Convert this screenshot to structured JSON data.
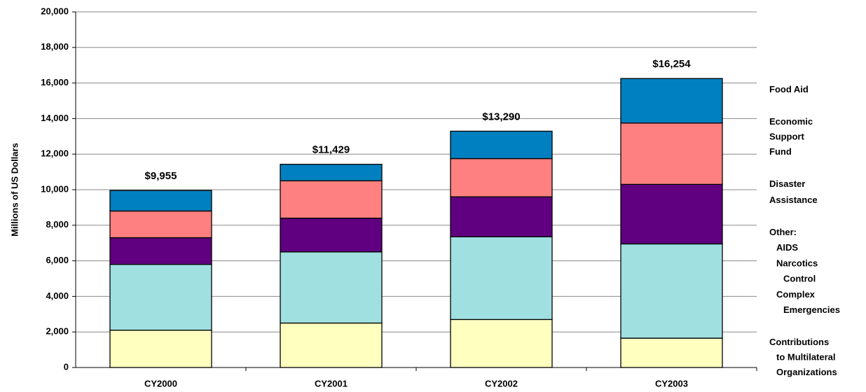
{
  "chart_data": {
    "type": "stacked_bar",
    "y_label": "Millions of US Dollars",
    "categories": [
      "CY2000",
      "CY2001",
      "CY2002",
      "CY2003"
    ],
    "series": [
      {
        "name": "Contributions\nto Multilateral\nOrganizations",
        "color": "#ffffc0",
        "values": [
          2100,
          2500,
          2700,
          1650
        ]
      },
      {
        "name": "Other:\nAIDS\nNarcotics\nControl\nComplex\nEmergencies",
        "color": "#a0e0e0",
        "values": [
          3700,
          4000,
          4650,
          5300
        ]
      },
      {
        "name": "Disaster\nAssistance",
        "color": "#600080",
        "values": [
          1500,
          1900,
          2250,
          3350
        ]
      },
      {
        "name": "Economic\nSupport\nFund",
        "color": "#ff8080",
        "values": [
          1500,
          2100,
          2150,
          3450
        ]
      },
      {
        "name": "Food Aid",
        "color": "#0080c0",
        "values": [
          1155,
          929,
          1540,
          2504
        ]
      }
    ],
    "totals": [
      9955,
      11429,
      13290,
      16254
    ],
    "total_labels": [
      "$9,955",
      "$11,429",
      "$13,290",
      "$16,254"
    ],
    "ylim": [
      0,
      20000
    ],
    "yticks": [
      {
        "value": 0,
        "label": "0"
      },
      {
        "value": 2000,
        "label": "2,000"
      },
      {
        "value": 4000,
        "label": "4,000"
      },
      {
        "value": 6000,
        "label": "6,000"
      },
      {
        "value": 8000,
        "label": "8,000"
      },
      {
        "value": 10000,
        "label": "10,000"
      },
      {
        "value": 12000,
        "label": "12,000"
      },
      {
        "value": 14000,
        "label": "14,000"
      },
      {
        "value": 16000,
        "label": "16,000"
      },
      {
        "value": 18000,
        "label": "18,000"
      },
      {
        "value": 20000,
        "label": "20,000"
      }
    ],
    "grid": true
  }
}
